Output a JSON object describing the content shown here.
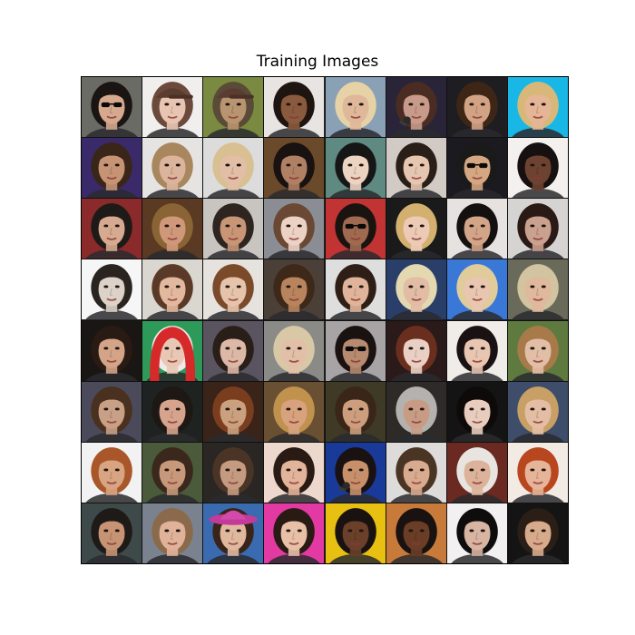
{
  "figure": {
    "title": "Training Images"
  },
  "grid": {
    "rows": 8,
    "cols": 8,
    "tiles": [
      {
        "bg": "#6b6b66",
        "hair": "#1a1512",
        "skin": "#d6a98f",
        "acc": "glasses"
      },
      {
        "bg": "#f1efee",
        "hair": "#6b4a3c",
        "skin": "#e8c5b2",
        "acc": "cap"
      },
      {
        "bg": "#7a8a40",
        "hair": "#5a4a38",
        "skin": "#b89470",
        "acc": "cap"
      },
      {
        "bg": "#e8e4e2",
        "hair": "#1e1410",
        "skin": "#8a5a3e",
        "acc": ""
      },
      {
        "bg": "#8aa0b4",
        "hair": "#e6d2a6",
        "skin": "#dfb89a",
        "acc": ""
      },
      {
        "bg": "#2a2438",
        "hair": "#4a2c22",
        "skin": "#c89a8a",
        "acc": "mic"
      },
      {
        "bg": "#1e1e22",
        "hair": "#3e2616",
        "skin": "#d2a284",
        "acc": ""
      },
      {
        "bg": "#19b7e6",
        "hair": "#d8b878",
        "skin": "#e4b696",
        "acc": ""
      },
      {
        "bg": "#3a2a6a",
        "hair": "#3a2618",
        "skin": "#c69474",
        "acc": ""
      },
      {
        "bg": "#e6e4e2",
        "hair": "#a8865e",
        "skin": "#dcb49c",
        "acc": ""
      },
      {
        "bg": "#dcdcdc",
        "hair": "#d8c092",
        "skin": "#e2bea6",
        "acc": ""
      },
      {
        "bg": "#6a4a2a",
        "hair": "#1a1210",
        "skin": "#b08064",
        "acc": ""
      },
      {
        "bg": "#5e8a82",
        "hair": "#161616",
        "skin": "#ecd4c2",
        "acc": ""
      },
      {
        "bg": "#d2cac4",
        "hair": "#2a1e18",
        "skin": "#e6c6b0",
        "acc": ""
      },
      {
        "bg": "#1a1a20",
        "hair": "#1a1a1a",
        "skin": "#d4a682",
        "acc": "glasses"
      },
      {
        "bg": "#f4f0ee",
        "hair": "#161010",
        "skin": "#6e4230",
        "acc": ""
      },
      {
        "bg": "#8a2a2a",
        "hair": "#1e1a18",
        "skin": "#d6aa90",
        "acc": ""
      },
      {
        "bg": "#5a3a22",
        "hair": "#8a6434",
        "skin": "#d0987a",
        "acc": ""
      },
      {
        "bg": "#c8c4c0",
        "hair": "#2e2420",
        "skin": "#c89676",
        "acc": ""
      },
      {
        "bg": "#8a8e94",
        "hair": "#6a4834",
        "skin": "#ecd2c4",
        "acc": ""
      },
      {
        "bg": "#c23434",
        "hair": "#1a1410",
        "skin": "#a06a50",
        "acc": "glasses"
      },
      {
        "bg": "#1a1a1a",
        "hair": "#d4b070",
        "skin": "#eccab6",
        "acc": ""
      },
      {
        "bg": "#e6e2e0",
        "hair": "#141010",
        "skin": "#d2a488",
        "acc": ""
      },
      {
        "bg": "#d6d4d2",
        "hair": "#2a1a16",
        "skin": "#caa08e",
        "acc": ""
      },
      {
        "bg": "#f6f6f6",
        "hair": "#2a2420",
        "skin": "#dcd2c8",
        "acc": ""
      },
      {
        "bg": "#dad6d0",
        "hair": "#5a3a26",
        "skin": "#e2b89e",
        "acc": ""
      },
      {
        "bg": "#e6e2de",
        "hair": "#7a4a2a",
        "skin": "#e6c4ac",
        "acc": ""
      },
      {
        "bg": "#4a4038",
        "hair": "#3e2818",
        "skin": "#b8845e",
        "acc": ""
      },
      {
        "bg": "#dedede",
        "hair": "#2e1e16",
        "skin": "#e0b49a",
        "acc": ""
      },
      {
        "bg": "#2a3e6a",
        "hair": "#e4d8b0",
        "skin": "#e2bca4",
        "acc": ""
      },
      {
        "bg": "#3a78d8",
        "hair": "#e0cc9a",
        "skin": "#e8c6b0",
        "acc": ""
      },
      {
        "bg": "#6a6a5a",
        "hair": "#d2c4a0",
        "skin": "#e0b89c",
        "acc": ""
      },
      {
        "bg": "#1a1614",
        "hair": "#2a1a14",
        "skin": "#d4a488",
        "acc": ""
      },
      {
        "bg": "#2e9a5a",
        "hair": "#f0eaea",
        "skin": "#e8c8b4",
        "acc": "hood"
      },
      {
        "bg": "#5a5460",
        "hair": "#2a1e18",
        "skin": "#dcb8a6",
        "acc": ""
      },
      {
        "bg": "#8a8a86",
        "hair": "#d8c8a6",
        "skin": "#e2c0a8",
        "acc": ""
      },
      {
        "bg": "#a8a4a6",
        "hair": "#1a1210",
        "skin": "#b88a70",
        "acc": "glasses"
      },
      {
        "bg": "#2a1a1a",
        "hair": "#6a2e1e",
        "skin": "#ead0c4",
        "acc": ""
      },
      {
        "bg": "#f0ece8",
        "hair": "#1a1212",
        "skin": "#e8c6b2",
        "acc": ""
      },
      {
        "bg": "#5e7a3e",
        "hair": "#a87a4a",
        "skin": "#e2bea6",
        "acc": ""
      },
      {
        "bg": "#4a4a5a",
        "hair": "#4a301e",
        "skin": "#c8a086",
        "acc": ""
      },
      {
        "bg": "#1e2220",
        "hair": "#1e1814",
        "skin": "#d6a48c",
        "acc": ""
      },
      {
        "bg": "#3a241a",
        "hair": "#7a3e1e",
        "skin": "#caa07e",
        "acc": ""
      },
      {
        "bg": "#6a5032",
        "hair": "#c0924e",
        "skin": "#d8a27e",
        "acc": ""
      },
      {
        "bg": "#3e3a26",
        "hair": "#3a2618",
        "skin": "#cc9e7e",
        "acc": ""
      },
      {
        "bg": "#2e2a28",
        "hair": "#b4b2ae",
        "skin": "#c89c84",
        "acc": ""
      },
      {
        "bg": "#141414",
        "hair": "#0e0a0a",
        "skin": "#e8ccbe",
        "acc": ""
      },
      {
        "bg": "#3e4e6a",
        "hair": "#c8a066",
        "skin": "#e4bea4",
        "acc": ""
      },
      {
        "bg": "#f2f2f2",
        "hair": "#a8562a",
        "skin": "#d8a482",
        "acc": ""
      },
      {
        "bg": "#4a5a3a",
        "hair": "#3a281c",
        "skin": "#c8987a",
        "acc": ""
      },
      {
        "bg": "#2a2624",
        "hair": "#4a3426",
        "skin": "#c49a80",
        "acc": ""
      },
      {
        "bg": "#ecd8cc",
        "hair": "#2a1a14",
        "skin": "#e2b49a",
        "acc": ""
      },
      {
        "bg": "#1a3a9a",
        "hair": "#1a1212",
        "skin": "#c8906a",
        "acc": "mic"
      },
      {
        "bg": "#dedcda",
        "hair": "#4a3424",
        "skin": "#d8aa8e",
        "acc": ""
      },
      {
        "bg": "#6a2a22",
        "hair": "#e8e4e0",
        "skin": "#dcb29a",
        "acc": ""
      },
      {
        "bg": "#f2ebe4",
        "hair": "#b8461e",
        "skin": "#e6b498",
        "acc": ""
      },
      {
        "bg": "#3e4a4a",
        "hair": "#1e1a18",
        "skin": "#c69474",
        "acc": ""
      },
      {
        "bg": "#7a8290",
        "hair": "#8a6a4a",
        "skin": "#e0b29a",
        "acc": ""
      },
      {
        "bg": "#3a6ab0",
        "hair": "#3a2418",
        "skin": "#e0b89e",
        "acc": "hat"
      },
      {
        "bg": "#e23aa2",
        "hair": "#2a1a14",
        "skin": "#e8c0a8",
        "acc": ""
      },
      {
        "bg": "#e8c012",
        "hair": "#1a1210",
        "skin": "#6a402a",
        "acc": ""
      },
      {
        "bg": "#c87a3a",
        "hair": "#1a1210",
        "skin": "#6a3e26",
        "acc": ""
      },
      {
        "bg": "#f2f0f0",
        "hair": "#0e0c0c",
        "skin": "#d8b4a2",
        "acc": ""
      },
      {
        "bg": "#141414",
        "hair": "#2a1e16",
        "skin": "#d8aa8c",
        "acc": ""
      }
    ]
  }
}
